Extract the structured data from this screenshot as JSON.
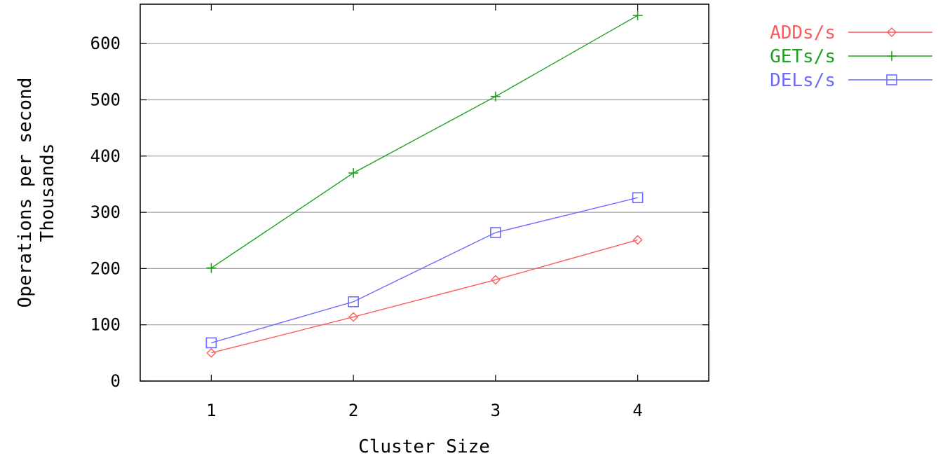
{
  "chart_data": {
    "type": "line",
    "title": "",
    "xlabel": "Cluster Size",
    "ylabel": "Operations per second",
    "ylabel2": "Thousands",
    "x": [
      1,
      2,
      3,
      4
    ],
    "xticks": [
      "1",
      "2",
      "3",
      "4"
    ],
    "xlim": [
      0.5,
      4.5
    ],
    "yticks": [
      "0",
      "100",
      "200",
      "300",
      "400",
      "500",
      "600"
    ],
    "ylim": [
      0,
      670
    ],
    "grid": "horizontal",
    "legend_position": "right",
    "series": [
      {
        "name": "ADDs/s",
        "color": "#ff5a5a",
        "marker": "diamond",
        "values": [
          50,
          114,
          180,
          251
        ]
      },
      {
        "name": "GETs/s",
        "color": "#1fa01f",
        "marker": "plus",
        "values": [
          201,
          370,
          506,
          650
        ]
      },
      {
        "name": "DELs/s",
        "color": "#6b6bff",
        "marker": "square",
        "values": [
          68,
          141,
          264,
          326
        ]
      }
    ]
  }
}
